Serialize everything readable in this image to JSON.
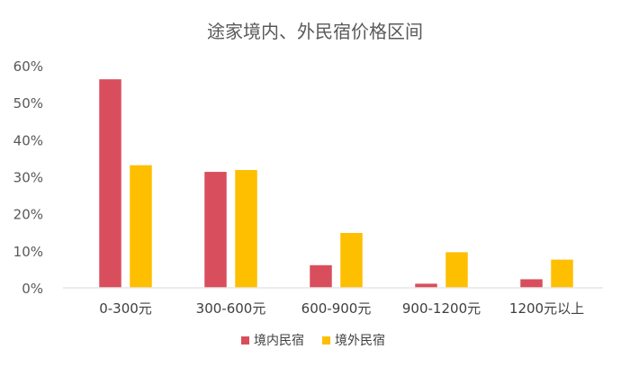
{
  "chart_data": {
    "type": "bar",
    "title": "途家境内、外民宿价格区间",
    "categories": [
      "0-300元",
      "300-600元",
      "600-900元",
      "900-1200元",
      "1200元以上"
    ],
    "series": [
      {
        "name": "境内民宿",
        "color": "#d94e5d",
        "values": [
          56.5,
          31.5,
          6.3,
          1.3,
          2.5
        ]
      },
      {
        "name": "境外民宿",
        "color": "#fdbf00",
        "values": [
          33.3,
          32.0,
          15.0,
          9.8,
          7.8
        ]
      }
    ],
    "yticks": [
      "0%",
      "10%",
      "20%",
      "30%",
      "40%",
      "50%",
      "60%"
    ],
    "ylim": [
      0,
      60
    ],
    "grid": false,
    "legend_position": "bottom"
  }
}
